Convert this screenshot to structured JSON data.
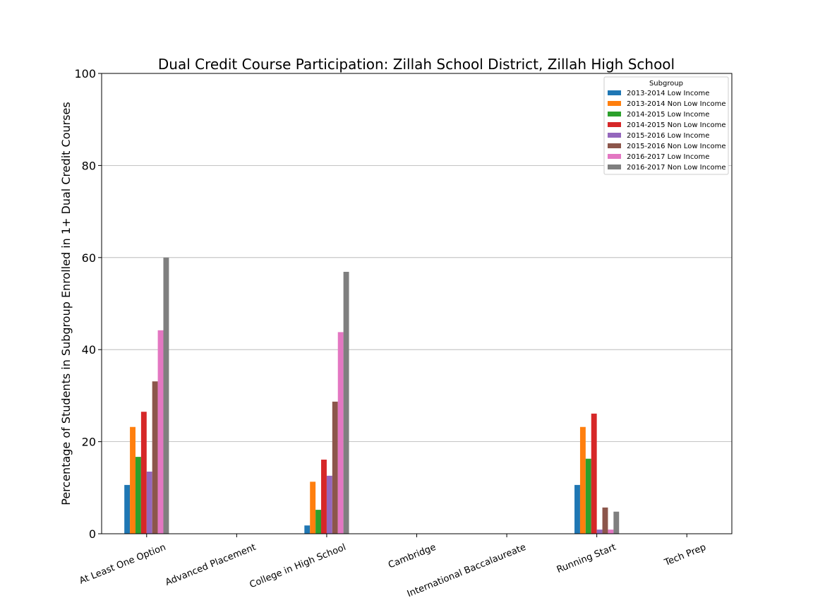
{
  "chart_data": {
    "type": "bar",
    "title": "Dual Credit Course Participation: Zillah School District, Zillah High School",
    "xlabel": "",
    "ylabel": "Percentage of Students in Subgroup Enrolled in 1+ Dual Credit Courses",
    "ylim": [
      0,
      100
    ],
    "yticks": [
      "0",
      "20",
      "40",
      "60",
      "80",
      "100"
    ],
    "grid": "horizontal",
    "legend_title": "Subgroup",
    "legend_position": "top-right",
    "categories": [
      "At Least One Option",
      "Advanced Placement",
      "College in High School",
      "Cambridge",
      "International Baccalaureate",
      "Running Start",
      "Tech Prep"
    ],
    "series": [
      {
        "name": "2013-2014 Low Income",
        "color": "#1f77b4",
        "values": [
          10.6,
          0,
          1.8,
          0,
          0,
          10.6,
          0
        ]
      },
      {
        "name": "2013-2014 Non Low Income",
        "color": "#ff7f0e",
        "values": [
          23.2,
          0,
          11.3,
          0,
          0,
          23.2,
          0
        ]
      },
      {
        "name": "2014-2015 Low Income",
        "color": "#2ca02c",
        "values": [
          16.7,
          0,
          5.2,
          0,
          0,
          16.3,
          0
        ]
      },
      {
        "name": "2014-2015 Non Low Income",
        "color": "#d62728",
        "values": [
          26.5,
          0,
          16.1,
          0,
          0,
          26.1,
          0
        ]
      },
      {
        "name": "2015-2016 Low Income",
        "color": "#9467bd",
        "values": [
          13.5,
          0,
          12.6,
          0,
          0,
          0.9,
          0
        ]
      },
      {
        "name": "2015-2016 Non Low Income",
        "color": "#8c564b",
        "values": [
          33.1,
          0,
          28.7,
          0,
          0,
          5.7,
          0
        ]
      },
      {
        "name": "2016-2017 Low Income",
        "color": "#e377c2",
        "values": [
          44.2,
          0,
          43.8,
          0,
          0,
          0.9,
          0
        ]
      },
      {
        "name": "2016-2017 Non Low Income",
        "color": "#7f7f7f",
        "values": [
          60.0,
          0,
          56.9,
          0,
          0,
          4.8,
          0
        ]
      }
    ]
  }
}
